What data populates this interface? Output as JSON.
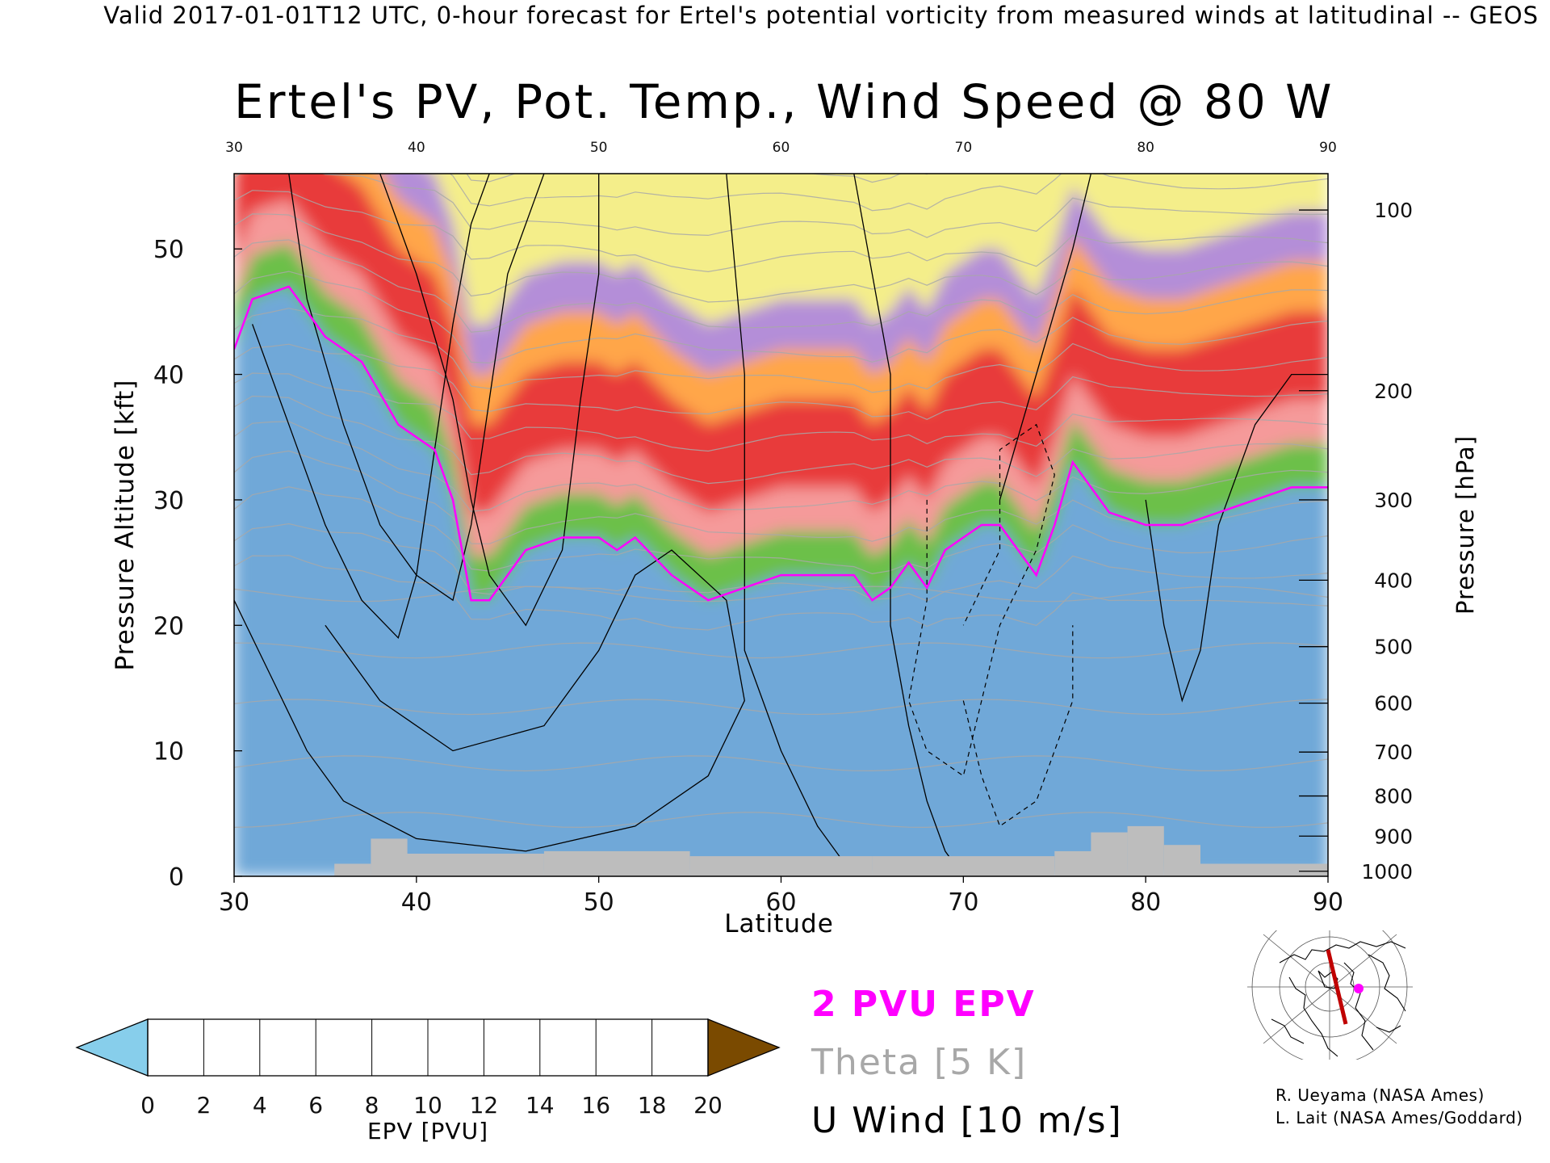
{
  "header": {
    "text": "Valid 2017-01-01T12 UTC, 0-hour forecast for Ertel's potential vorticity from measured winds at latitudinal -- GEOS"
  },
  "chart_data": {
    "type": "heatmap",
    "title": "Ertel's PV, Pot. Temp., Wind Speed @ 80 W",
    "xlabel": "Latitude",
    "ylabel": "Pressure Altitude [kft]",
    "ylabel_right": "Pressure [hPa]",
    "xlim": [
      30,
      90
    ],
    "ylim": [
      0,
      56
    ],
    "x_ticks": [
      "30",
      "40",
      "50",
      "60",
      "70",
      "80",
      "90"
    ],
    "x_ticks_top": [
      "30",
      "40",
      "50",
      "60",
      "70",
      "80",
      "90"
    ],
    "y_ticks": [
      "0",
      "10",
      "20",
      "30",
      "40",
      "50"
    ],
    "pressure_ticks": [
      {
        "label": "100",
        "kft": 53.1
      },
      {
        "label": "200",
        "kft": 38.7
      },
      {
        "label": "300",
        "kft": 30.0
      },
      {
        "label": "400",
        "kft": 23.6
      },
      {
        "label": "500",
        "kft": 18.3
      },
      {
        "label": "600",
        "kft": 13.8
      },
      {
        "label": "700",
        "kft": 9.9
      },
      {
        "label": "800",
        "kft": 6.4
      },
      {
        "label": "900",
        "kft": 3.2
      },
      {
        "label": "1000",
        "kft": 0.4
      }
    ],
    "tropopause_2pvu_kft": {
      "lat": [
        30,
        31,
        33,
        35,
        37,
        39,
        40,
        41,
        42,
        43,
        44,
        45,
        46,
        48,
        50,
        51,
        52,
        54,
        56,
        58,
        60,
        62,
        64,
        65,
        66,
        67,
        68,
        69,
        70,
        71,
        72,
        73,
        74,
        75,
        76,
        77,
        78,
        80,
        82,
        84,
        86,
        88,
        90
      ],
      "kft": [
        42,
        46,
        47,
        43,
        41,
        36,
        35,
        34,
        30,
        22,
        22,
        24,
        26,
        27,
        27,
        26,
        27,
        24,
        22,
        23,
        24,
        24,
        24,
        22,
        23,
        25,
        23,
        26,
        27,
        28,
        28,
        26,
        24,
        28,
        33,
        31,
        29,
        28,
        28,
        29,
        30,
        31,
        31
      ]
    },
    "colorbar": {
      "label": "EPV [PVU]",
      "ticks": [
        "0",
        "2",
        "4",
        "6",
        "8",
        "10",
        "12",
        "14",
        "16",
        "18",
        "20"
      ],
      "range": [
        0,
        20
      ],
      "colors": [
        "#8fc8ea",
        "#3a78c0",
        "#b8e08a",
        "#70c050",
        "#2c962c",
        "#ffb4b4",
        "#ff5a5a",
        "#e02020",
        "#ffc070",
        "#ff8a1a",
        "#c0a6dc",
        "#7a3cb0",
        "#f6f08a",
        "#7a4a00"
      ],
      "under_color": "#87ceeb",
      "over_color": "#7a4a00"
    },
    "legend": {
      "pv_contour": "2 PVU EPV",
      "theta_contour": "Theta [5 K]",
      "wind_contour": "U Wind [10 m/s]",
      "pv_color": "#ff00ff",
      "theta_color": "#a8a8a8",
      "wind_color": "#000000"
    }
  },
  "credits": {
    "line1": "R. Ueyama (NASA Ames)",
    "line2": "L. Lait (NASA Ames/Goddard)"
  },
  "inset_map": {
    "marker_color": "#ff00ff",
    "track_color": "#c00000"
  }
}
